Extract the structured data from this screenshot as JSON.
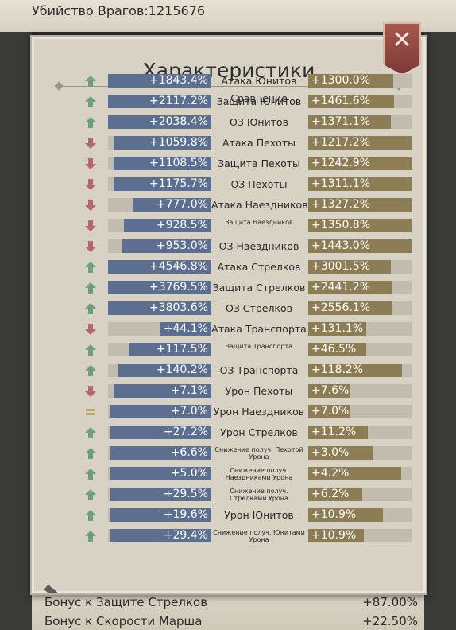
{
  "top_bar": {
    "text": "Убийство Врагов:1215676"
  },
  "bottom_rows": [
    {
      "label": "Бонус к Защите Стрелков",
      "value": "+87.00%"
    },
    {
      "label": "Бонус к Скорости Марша",
      "value": "+22.50%"
    }
  ],
  "panel": {
    "title": "Характеристики",
    "close_label": "✕",
    "partial_row": {
      "label": "Сравнение"
    }
  },
  "colors": {
    "up": "#6d9e83",
    "down": "#b5656d",
    "equal": "#b6a86b",
    "left_fill": "#5d6f90",
    "right_fill": "#8c7d55"
  },
  "stats": [
    {
      "trend": "up",
      "left": "+1843.4%",
      "label": "Атака Юнитов",
      "right": "+1300.0%",
      "left_fill": 1.0,
      "right_fill": 0.82
    },
    {
      "trend": "up",
      "left": "+2117.2%",
      "label": "Защита Юнитов",
      "right": "+1461.6%",
      "left_fill": 1.0,
      "right_fill": 0.83
    },
    {
      "trend": "up",
      "left": "+2038.4%",
      "label": "ОЗ Юнитов",
      "right": "+1371.1%",
      "left_fill": 1.0,
      "right_fill": 0.8
    },
    {
      "trend": "down",
      "left": "+1059.8%",
      "label": "Атака Пехоты",
      "right": "+1217.2%",
      "left_fill": 0.94,
      "right_fill": 1.0
    },
    {
      "trend": "down",
      "left": "+1108.5%",
      "label": "Защита Пехоты",
      "right": "+1242.9%",
      "left_fill": 0.95,
      "right_fill": 1.0
    },
    {
      "trend": "down",
      "left": "+1175.7%",
      "label": "ОЗ Пехоты",
      "right": "+1311.1%",
      "left_fill": 0.95,
      "right_fill": 1.0
    },
    {
      "trend": "down",
      "left": "+777.0%",
      "label": "Атака Наездников",
      "right": "+1327.2%",
      "left_fill": 0.76,
      "right_fill": 1.0
    },
    {
      "trend": "down",
      "left": "+928.5%",
      "label": "Защита Наездников",
      "right": "+1350.8%",
      "left_fill": 0.85,
      "right_fill": 1.0,
      "small_label": true
    },
    {
      "trend": "down",
      "left": "+953.0%",
      "label": "ОЗ Наездников",
      "right": "+1443.0%",
      "left_fill": 0.86,
      "right_fill": 1.0
    },
    {
      "trend": "up",
      "left": "+4546.8%",
      "label": "Атака Стрелков",
      "right": "+3001.5%",
      "left_fill": 1.0,
      "right_fill": 0.8
    },
    {
      "trend": "up",
      "left": "+3769.5%",
      "label": "Защита Стрелков",
      "right": "+2441.2%",
      "left_fill": 1.0,
      "right_fill": 0.81
    },
    {
      "trend": "up",
      "left": "+3803.6%",
      "label": "ОЗ Стрелков",
      "right": "+2556.1%",
      "left_fill": 1.0,
      "right_fill": 0.81
    },
    {
      "trend": "down",
      "left": "+44.1%",
      "label": "Атака Транспорта",
      "right": "+131.1%",
      "left_fill": 0.5,
      "right_fill": 0.56
    },
    {
      "trend": "up",
      "left": "+117.5%",
      "label": "Защита Транспорта",
      "right": "+46.5%",
      "left_fill": 0.8,
      "right_fill": 0.56,
      "small_label": true
    },
    {
      "trend": "up",
      "left": "+140.2%",
      "label": "ОЗ Транспорта",
      "right": "+118.2%",
      "left_fill": 0.9,
      "right_fill": 0.91
    },
    {
      "trend": "down",
      "left": "+7.1%",
      "label": "Урон Пехоты",
      "right": "+7.6%",
      "left_fill": 0.95,
      "right_fill": 0.4
    },
    {
      "trend": "equal",
      "left": "+7.0%",
      "label": "Урон Наездников",
      "right": "+7.0%",
      "left_fill": 0.98,
      "right_fill": 0.4
    },
    {
      "trend": "up",
      "left": "+27.2%",
      "label": "Урон Стрелков",
      "right": "+11.2%",
      "left_fill": 0.98,
      "right_fill": 0.58
    },
    {
      "trend": "up",
      "left": "+6.6%",
      "label": "Снижение получ. Пехотой Урона",
      "right": "+3.0%",
      "left_fill": 0.98,
      "right_fill": 0.62,
      "small_label": true
    },
    {
      "trend": "up",
      "left": "+5.0%",
      "label": "Снижение получ. Наездниками Урона",
      "right": "+4.2%",
      "left_fill": 0.98,
      "right_fill": 0.9,
      "small_label": true
    },
    {
      "trend": "up",
      "left": "+29.5%",
      "label": "Снижение получ. Стрелками Урона",
      "right": "+6.2%",
      "left_fill": 0.98,
      "right_fill": 0.52,
      "small_label": true
    },
    {
      "trend": "up",
      "left": "+19.6%",
      "label": "Урон Юнитов",
      "right": "+10.9%",
      "left_fill": 0.98,
      "right_fill": 0.72
    },
    {
      "trend": "up",
      "left": "+29.4%",
      "label": "Снижение получ. Юнитами Урона",
      "right": "+10.9%",
      "left_fill": 0.98,
      "right_fill": 0.54,
      "small_label": true
    }
  ]
}
